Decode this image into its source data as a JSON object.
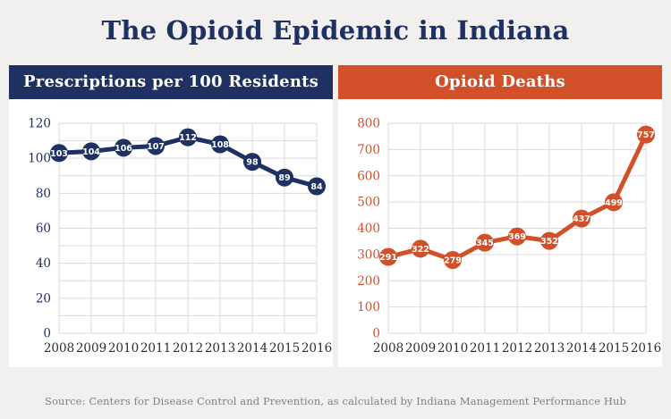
{
  "title": "The Opioid Epidemic in Indiana",
  "source": "Source: Centers for Disease Control and Prevention, as calculated by Indiana Management Performance Hub",
  "colors": {
    "background": "#f1f0ee",
    "panel": "#ffffff",
    "navy": "#1f3163",
    "orange": "#d1502a",
    "grid": "#dadada",
    "year_label": "#2e2e2e",
    "source_text": "#808080",
    "point_label": "#ffffff"
  },
  "chart_data": [
    {
      "type": "line",
      "title": "Prescriptions per 100 Residents",
      "categories": [
        "2008",
        "2009",
        "2010",
        "2011",
        "2012",
        "2013",
        "2014",
        "2015",
        "2016"
      ],
      "values": [
        103,
        104,
        106,
        107,
        112,
        108,
        98,
        89,
        84
      ],
      "xlabel": "",
      "ylabel": "",
      "ylim": [
        0,
        120
      ],
      "ytick_step": 20,
      "grid_minor_step": 10,
      "grid": true,
      "legend": false,
      "color": "#1f3163",
      "point_labels": true
    },
    {
      "type": "line",
      "title": "Opioid Deaths",
      "categories": [
        "2008",
        "2009",
        "2010",
        "2011",
        "2012",
        "2013",
        "2014",
        "2015",
        "2016"
      ],
      "values": [
        291,
        322,
        279,
        345,
        369,
        352,
        437,
        499,
        757
      ],
      "xlabel": "",
      "ylabel": "",
      "ylim": [
        0,
        800
      ],
      "ytick_step": 100,
      "grid_minor_step": 100,
      "grid": true,
      "legend": false,
      "color": "#d1502a",
      "point_labels": true
    }
  ]
}
